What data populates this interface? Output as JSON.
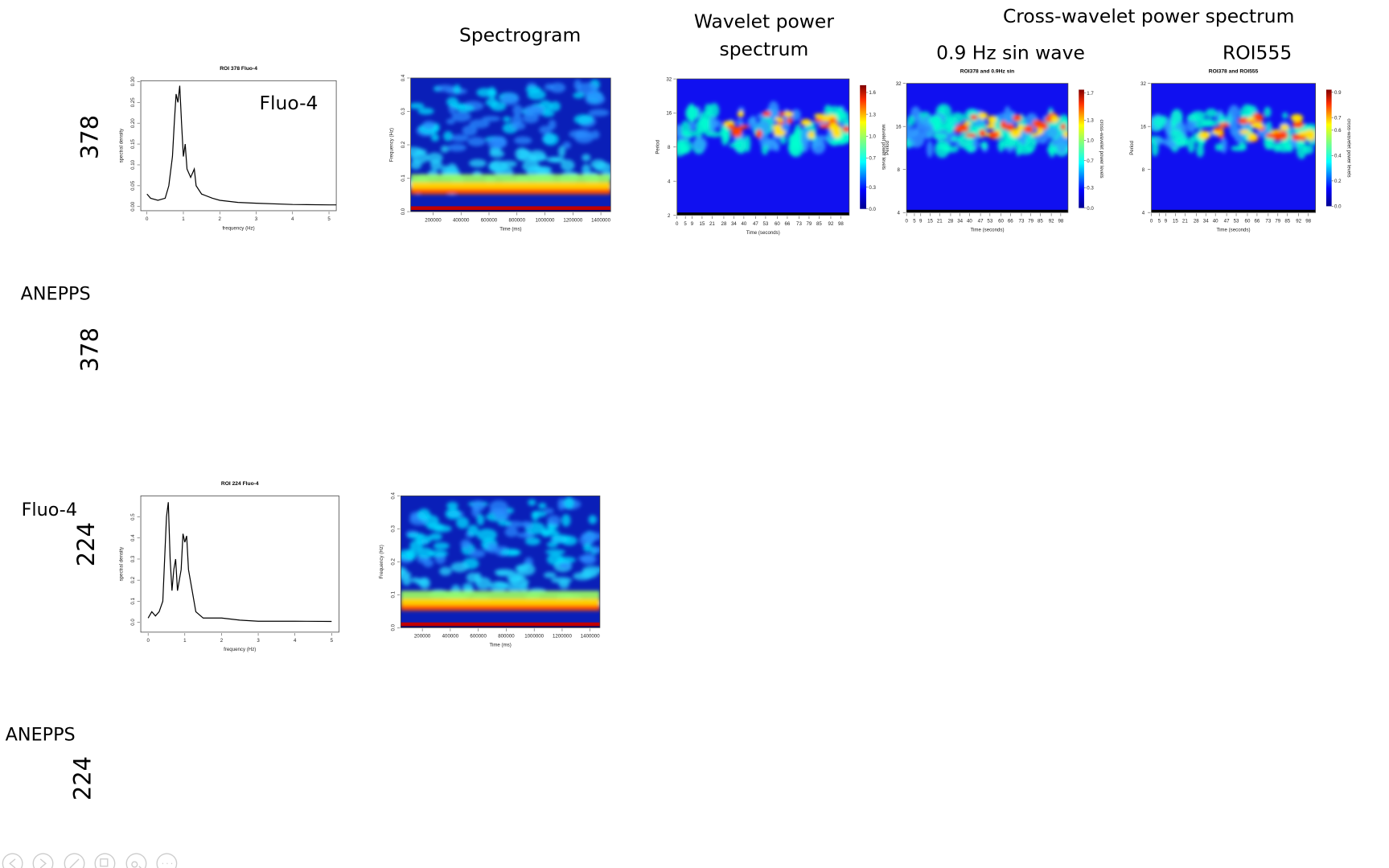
{
  "headers": {
    "spectrogram": "Spectrogram",
    "wavelet": [
      "Wavelet power",
      "spectrum"
    ],
    "cross_wavelet": "Cross-wavelet power spectrum",
    "sin_wave": "0.9 Hz sin wave",
    "roi555": "ROI555"
  },
  "row_labels": [
    {
      "text": "378"
    },
    {
      "text": "ANEPPS"
    },
    {
      "text": "378"
    },
    {
      "text": "Fluo-4"
    },
    {
      "text": "224"
    },
    {
      "text": "ANEPPS"
    },
    {
      "text": "224"
    }
  ],
  "annotation": "Fluo-4",
  "plots": [
    {
      "type": "line",
      "title": "ROI 378 Fluo-4",
      "xlabel": "frequency (Hz)",
      "ylabel": "spectral density",
      "x": [
        0,
        0.1,
        0.3,
        0.5,
        0.6,
        0.7,
        0.75,
        0.8,
        0.85,
        0.9,
        0.95,
        1.0,
        1.05,
        1.1,
        1.2,
        1.3,
        1.35,
        1.5,
        1.8,
        2.0,
        2.5,
        3,
        4,
        5,
        5.2
      ],
      "values": [
        0.03,
        0.02,
        0.015,
        0.02,
        0.05,
        0.12,
        0.2,
        0.27,
        0.25,
        0.29,
        0.2,
        0.12,
        0.15,
        0.09,
        0.07,
        0.09,
        0.05,
        0.03,
        0.02,
        0.015,
        0.01,
        0.008,
        0.005,
        0.004,
        0.004
      ],
      "color": "#000000",
      "xlim": [
        -0.17,
        5.2
      ],
      "ylim": [
        -0.01,
        0.302
      ],
      "xticks": [
        0,
        1,
        2,
        3,
        4,
        5
      ],
      "yticks": [
        {
          "value": 0,
          "label": "0.00"
        },
        {
          "value": 0.05,
          "label": "0.05"
        },
        {
          "value": 0.1,
          "label": "0.10"
        },
        {
          "value": 0.15,
          "label": "0.15"
        },
        {
          "value": 0.2,
          "label": "0.20"
        },
        {
          "value": 0.25,
          "label": "0.25"
        },
        {
          "value": 0.3,
          "label": "0.30"
        }
      ]
    },
    {
      "type": "spectrogram",
      "xlabel": "Time (ms)",
      "ylabel": "Frequency (Hz)",
      "xlim": [
        40000,
        1470000
      ],
      "ylim": [
        0,
        0.4
      ],
      "xticks": [
        200000,
        400000,
        600000,
        800000,
        1000000,
        1200000,
        1400000
      ],
      "yticks": [
        {
          "value": 0,
          "label": "0.0"
        },
        0.1,
        0.2,
        0.3,
        0.4
      ]
    },
    {
      "type": "wavelet",
      "xlabel": "Time (seconds)",
      "ylabel": "Period",
      "xlim": [
        0,
        103
      ],
      "ylim": [
        2,
        32
      ],
      "log_y": true,
      "xticks": [
        0,
        5,
        9,
        15,
        21,
        28,
        34,
        40,
        47,
        53,
        60,
        66,
        73,
        79,
        85,
        92,
        98
      ],
      "yticks": [
        2,
        4,
        8,
        16,
        32
      ],
      "colorbar": {
        "label": "wavelet power levels",
        "lim": [
          0,
          1.7
        ],
        "ticks": [
          {
            "value": 0,
            "label": "0.0"
          },
          0.3,
          0.7,
          {
            "value": 1,
            "label": "1.0"
          },
          1.3,
          1.6
        ]
      }
    },
    {
      "type": "wavelet",
      "title": "ROI378 and 0.9Hz sin",
      "xlabel": "Time (seconds)",
      "ylabel": "Period",
      "xlim": [
        0,
        102.6
      ],
      "ylim": [
        4,
        32
      ],
      "log_y": true,
      "xticks": [
        0,
        5,
        9,
        15,
        21,
        28,
        34,
        40,
        47,
        53,
        60,
        66,
        73,
        79,
        85,
        92,
        98
      ],
      "yticks": [
        4,
        8,
        16,
        32
      ],
      "colorbar": {
        "label": "cross-wavelet power levels",
        "lim": [
          0,
          1.75
        ],
        "ticks": [
          {
            "value": 0,
            "label": "0.0"
          },
          0.3,
          0.7,
          {
            "value": 1,
            "label": "1.0"
          },
          1.3,
          1.7
        ]
      }
    },
    {
      "type": "wavelet",
      "title": "ROI378 and ROI555",
      "xlabel": "Time (seconds)",
      "ylabel": "Period",
      "xlim": [
        0,
        102.5
      ],
      "ylim": [
        4,
        32
      ],
      "log_y": true,
      "xticks": [
        0,
        5,
        9,
        15,
        21,
        28,
        34,
        40,
        47,
        53,
        60,
        66,
        73,
        79,
        85,
        92,
        98
      ],
      "yticks": [
        4,
        8,
        16,
        32
      ],
      "colorbar": {
        "label": "cross-wavelet power levels",
        "lim": [
          0,
          0.92
        ],
        "ticks": [
          {
            "value": 0,
            "label": "0.0"
          },
          0.2,
          0.4,
          0.6,
          0.7,
          0.9
        ]
      }
    },
    {
      "type": "line",
      "title": "ROI 224 Fluo-4",
      "xlabel": "frequency (Hz)",
      "ylabel": "spectral density",
      "x": [
        0,
        0.1,
        0.2,
        0.3,
        0.4,
        0.45,
        0.5,
        0.55,
        0.6,
        0.65,
        0.7,
        0.75,
        0.8,
        0.9,
        0.95,
        1.0,
        1.05,
        1.1,
        1.2,
        1.3,
        1.5,
        2,
        2.5,
        3,
        4,
        5
      ],
      "values": [
        0.02,
        0.05,
        0.03,
        0.05,
        0.1,
        0.3,
        0.5,
        0.57,
        0.3,
        0.15,
        0.25,
        0.3,
        0.15,
        0.25,
        0.42,
        0.38,
        0.41,
        0.25,
        0.15,
        0.05,
        0.02,
        0.02,
        0.01,
        0.005,
        0.005,
        0.004
      ],
      "color": "#000000",
      "xlim": [
        -0.2,
        5.2
      ],
      "ylim": [
        -0.047,
        0.6
      ],
      "xticks": [
        0,
        1,
        2,
        3,
        4,
        5
      ],
      "yticks": [
        {
          "value": 0,
          "label": "0.0"
        },
        0.1,
        0.2,
        0.3,
        0.4,
        0.5
      ]
    },
    {
      "type": "spectrogram",
      "xlabel": "Time (ms)",
      "ylabel": "Frequency (Hz)",
      "xlim": [
        46000,
        1470000
      ],
      "ylim": [
        0,
        0.4
      ],
      "xticks": [
        200000,
        400000,
        600000,
        800000,
        1000000,
        1200000,
        1400000
      ],
      "yticks": [
        {
          "value": 0,
          "label": "0.0"
        },
        0.1,
        0.2,
        0.3,
        0.4
      ]
    }
  ]
}
